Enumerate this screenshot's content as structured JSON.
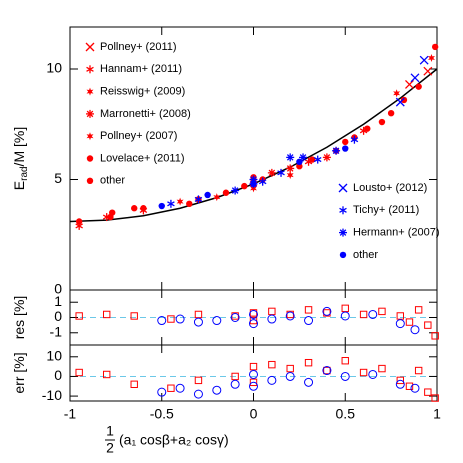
{
  "chart_data": {
    "type": "scatter",
    "xlabel_frac": [
      "1",
      "2"
    ],
    "xlabel": "(a₁ cosβ+a₂ cosγ)",
    "xlim": [
      -1,
      1
    ],
    "xticks": [
      -1,
      -0.5,
      0,
      0.5,
      1
    ],
    "panels": [
      {
        "ylabel": [
          "E",
          "rad",
          "/M [%]"
        ],
        "ylim": [
          0,
          11.9
        ],
        "yticks": [
          0,
          5,
          10
        ],
        "curve": {
          "color": "#000000",
          "x": [
            -1,
            -0.8,
            -0.6,
            -0.4,
            -0.2,
            0,
            0.2,
            0.4,
            0.6,
            0.8,
            1
          ],
          "values": [
            3.1,
            3.16,
            3.36,
            3.7,
            4.18,
            4.8,
            5.56,
            6.46,
            7.5,
            8.68,
            10.0
          ]
        },
        "series": [
          {
            "name": "Pollney+ (2011)",
            "color": "#ff0000",
            "marker": "cross",
            "x": [
              0.85,
              0.95
            ],
            "values": [
              9.3,
              9.9
            ]
          },
          {
            "name": "Hannam+ (2011)",
            "color": "#ff0000",
            "marker": "asterisk",
            "x": [
              -0.95,
              -0.8,
              -0.6,
              0.0,
              0.3,
              0.6
            ],
            "values": [
              2.9,
              3.3,
              3.6,
              4.8,
              5.8,
              7.2
            ]
          },
          {
            "name": "Reisswig+ (2009)",
            "color": "#ff0000",
            "marker": "star",
            "x": [
              0.97,
              0.78
            ],
            "values": [
              10.5,
              8.9
            ]
          },
          {
            "name": "Marronetti+ (2008)",
            "color": "#ff0000",
            "marker": "burst",
            "x": [
              0.1,
              0.2,
              0.4
            ],
            "values": [
              5.3,
              5.5,
              6.0
            ]
          },
          {
            "name": "Pollney+ (2007)",
            "color": "#ff0000",
            "marker": "star",
            "x": [
              -0.4,
              -0.2,
              0.0,
              0.2
            ],
            "values": [
              4.0,
              4.2,
              4.6,
              5.2
            ]
          },
          {
            "name": "Lovelace+ (2011)",
            "color": "#ff0000",
            "marker": "dot",
            "x": [
              -0.95,
              -0.77,
              -0.6,
              -0.35
            ],
            "values": [
              3.1,
              3.5,
              3.7,
              3.9
            ]
          },
          {
            "name": "other",
            "color": "#ff0000",
            "marker": "dot",
            "x": [
              -0.78,
              -0.65,
              -0.3,
              -0.15,
              -0.05,
              0.0,
              0.0,
              0.05,
              0.25,
              0.32,
              0.45,
              0.5,
              0.55,
              0.62,
              0.7,
              0.75,
              0.82,
              0.9,
              0.99
            ],
            "values": [
              3.3,
              3.7,
              4.1,
              4.4,
              4.7,
              4.9,
              5.1,
              5.0,
              5.6,
              5.9,
              6.3,
              6.7,
              6.9,
              7.3,
              7.6,
              8.0,
              8.6,
              9.2,
              11.0
            ]
          },
          {
            "name": "Lousto+ (2012)",
            "color": "#0000ff",
            "marker": "cross",
            "x": [
              0.88,
              0.93,
              0.8
            ],
            "values": [
              9.6,
              10.4,
              8.5
            ]
          },
          {
            "name": "Tichy+ (2011)",
            "color": "#0000ff",
            "marker": "asterisk",
            "x": [
              -0.45,
              -0.3,
              0.05,
              0.15,
              0.35,
              0.55
            ],
            "values": [
              3.9,
              4.1,
              4.9,
              5.3,
              5.9,
              6.8
            ]
          },
          {
            "name": "Hermann+ (2007)",
            "color": "#0000ff",
            "marker": "burst",
            "x": [
              -0.1,
              0.0,
              0.0,
              0.2,
              0.27,
              0.45
            ],
            "values": [
              4.5,
              4.8,
              5.0,
              6.0,
              6.0,
              6.3
            ]
          },
          {
            "name": "other",
            "color": "#0000ff",
            "marker": "dot",
            "x": [
              -0.5,
              -0.25,
              0.0,
              0.25,
              0.5
            ],
            "values": [
              3.8,
              4.3,
              4.8,
              5.8,
              6.4
            ]
          }
        ]
      },
      {
        "ylabel": [
          "res [%]"
        ],
        "ylim": [
          -1.8,
          1.8
        ],
        "yticks": [
          -1,
          0,
          1
        ],
        "series": [
          {
            "color": "#ff0000",
            "marker": "square",
            "x": [
              -0.95,
              -0.8,
              -0.65,
              -0.45,
              -0.3,
              -0.1,
              0.0,
              0.0,
              0.1,
              0.2,
              0.3,
              0.4,
              0.5,
              0.6,
              0.7,
              0.8,
              0.85,
              0.9,
              0.95,
              0.99
            ],
            "values": [
              0.1,
              0.2,
              0.1,
              -0.1,
              0.2,
              0.1,
              0.3,
              -0.2,
              0.4,
              0.2,
              0.5,
              0.3,
              0.6,
              0.2,
              0.4,
              0.1,
              -0.3,
              0.5,
              -0.5,
              -1.2
            ]
          },
          {
            "color": "#0000ff",
            "marker": "circle",
            "x": [
              -0.5,
              -0.4,
              -0.3,
              -0.2,
              -0.1,
              0.0,
              0.0,
              0.1,
              0.2,
              0.3,
              0.4,
              0.5,
              0.65,
              0.8,
              0.88
            ],
            "values": [
              -0.2,
              -0.1,
              -0.3,
              -0.2,
              0.0,
              0.2,
              -0.4,
              -0.1,
              0.1,
              -0.2,
              0.4,
              0.1,
              0.2,
              -0.4,
              -0.8
            ]
          }
        ]
      },
      {
        "ylabel": [
          "err [%]"
        ],
        "ylim": [
          -12.5,
          16
        ],
        "yticks": [
          -10,
          0,
          10
        ],
        "series": [
          {
            "color": "#ff0000",
            "marker": "square",
            "x": [
              -0.95,
              -0.8,
              -0.65,
              -0.45,
              -0.3,
              -0.1,
              0.0,
              0.0,
              0.1,
              0.2,
              0.3,
              0.4,
              0.5,
              0.6,
              0.7,
              0.8,
              0.85,
              0.9,
              0.95,
              0.99
            ],
            "values": [
              2,
              1,
              -4,
              -6,
              -2,
              0,
              5,
              -3,
              6,
              4,
              7,
              3,
              8,
              2,
              4,
              -2,
              -5,
              3,
              -8,
              -11
            ]
          },
          {
            "color": "#0000ff",
            "marker": "circle",
            "x": [
              -0.5,
              -0.4,
              -0.3,
              -0.2,
              -0.1,
              0.0,
              0.0,
              0.1,
              0.2,
              0.3,
              0.4,
              0.5,
              0.65,
              0.8,
              0.88
            ],
            "values": [
              -8,
              -6,
              -9,
              -7,
              -4,
              1,
              -5,
              -2,
              0,
              -3,
              3,
              0,
              1,
              -4,
              -6
            ]
          }
        ]
      }
    ]
  }
}
